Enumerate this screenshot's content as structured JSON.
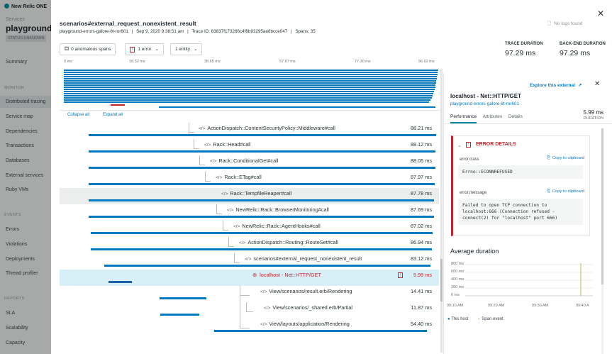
{
  "nav": {
    "logo": "New Relic ONE",
    "services_label": "Services",
    "app_name": "playground-",
    "status": "STATUS UNKNOWN",
    "summary": "Summary",
    "monitor_section": "MONITOR",
    "monitor_items": [
      "Distributed tracing",
      "Service map",
      "Dependencies",
      "Transactions",
      "Databases",
      "External services",
      "Ruby VMs"
    ],
    "events_section": "EVENTS",
    "events_items": [
      "Errors",
      "Violations",
      "Deployments",
      "Thread profiler"
    ],
    "reports_section": "REPORTS",
    "reports_items": [
      "SLA",
      "Scalability",
      "Capacity"
    ]
  },
  "header": {
    "title": "scenarios#external_request_nonexistent_result",
    "app": "playground-errors-galore-8t-ror601",
    "date": "Sep 9, 2020 9:38:51 am",
    "trace_id": "Trace ID: 63837f173266c4f6b93295ae8bcce047",
    "spans": "Spans: 35",
    "sep": "|",
    "anomalous_btn": "0 anomalous spans",
    "error_btn": "1 error",
    "entity_btn": "1 entity",
    "no_logs": "No logs found",
    "trace_duration_label": "TRACE DURATION",
    "trace_duration": "97.29 ms",
    "backend_duration_label": "BACK-END DURATION",
    "backend_duration": "97.29 ms"
  },
  "timeline": {
    "ticks": [
      "0 ms",
      "19.32 ms",
      "38.65 ms",
      "57.97 ms",
      "77.30 ms",
      "96.62 ms"
    ],
    "collapse_all": "Collapse all",
    "expand_all": "Expand all"
  },
  "spans": [
    {
      "name": "ActionDispatch::ContentSecurityPolicy::Middleware#call",
      "duration": "88.21 ms"
    },
    {
      "name": "Rack::Head#call",
      "duration": "88.12 ms"
    },
    {
      "name": "Rack::ConditionalGet#call",
      "duration": "88.05 ms"
    },
    {
      "name": "Rack::ETag#call",
      "duration": "87.97 ms"
    },
    {
      "name": "Rack::TempfileReaper#call",
      "duration": "87.78 ms"
    },
    {
      "name": "NewRelic::Rack::BrowserMonitoring#call",
      "duration": "87.69 ms"
    },
    {
      "name": "NewRelic::Rack::AgentHooks#call",
      "duration": "87.02 ms"
    },
    {
      "name": "ActionDispatch::Routing::RouteSet#call",
      "duration": "86.94 ms"
    },
    {
      "name": "scenarios#external_request_nonexistent_result",
      "duration": "83.12 ms"
    },
    {
      "name": "localhost - Net::HTTP/GET",
      "duration": "5.99 ms"
    },
    {
      "name": "View/scenarios/result.erb/Rendering",
      "duration": "14.41 ms"
    },
    {
      "name": "View/scenarios/_shared.erb/Partial",
      "duration": "11.87 ms"
    },
    {
      "name": "View/layouts/application/Rendering",
      "duration": "54.40 ms"
    }
  ],
  "panel": {
    "explore": "Explore this external",
    "name": "localhost - Net::HTTP/GET",
    "app": "playground-errors-galore-8t-ror601",
    "tabs": [
      "Performance",
      "Attributes",
      "Details"
    ],
    "duration": "5.99 ms",
    "duration_label": "DURATION",
    "error_title": "ERROR DETAILS",
    "error_class_label": "error.class",
    "error_class": "Errno::ECONNREFUSED",
    "error_message_label": "error.message",
    "error_message": "Failed to open TCP connection to localhost:666 (Connection refused - connect(2) for \"localhost\" port 666)",
    "copy": "Copy to clipboard",
    "avg_title": "Average duration",
    "y_ticks": [
      "800 ms",
      "600 ms",
      "400 ms",
      "200 ms",
      "0 ms"
    ],
    "x_ticks": [
      "09:10 AM",
      "09:20 AM",
      "09:30 AM",
      "09:40 A"
    ],
    "legend_host": "This host",
    "legend_span": "Span event"
  },
  "colors": {
    "accent": "#0079bf",
    "error": "#c0262d",
    "teal": "#008c99"
  }
}
